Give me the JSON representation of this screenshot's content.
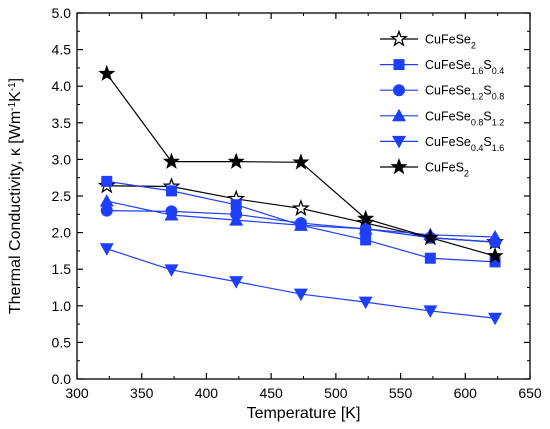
{
  "chart_data": {
    "type": "line",
    "xlabel": "Temperature [K]",
    "ylabel": {
      "prefix": "Thermal Conductivity, κ [Wm",
      "sup1": "-1",
      "mid": "K",
      "sup2": "-1",
      "suffix": "]"
    },
    "xlim": [
      300,
      650
    ],
    "ylim": [
      0.0,
      5.0
    ],
    "xticks": [
      "300",
      "350",
      "400",
      "450",
      "500",
      "550",
      "600",
      "650"
    ],
    "yticks": [
      "0.0",
      "0.5",
      "1.0",
      "1.5",
      "2.0",
      "2.5",
      "3.0",
      "3.5",
      "4.0",
      "4.5",
      "5.0"
    ],
    "grid": false,
    "legend_position": "top-right",
    "x": [
      323,
      373,
      423,
      473,
      523,
      573,
      623
    ],
    "series": [
      {
        "name": "CuFeSe2",
        "legend_parts": [
          {
            "t": "CuFeSe"
          },
          {
            "t": "2",
            "sub": true
          }
        ],
        "marker": "star-open",
        "color": "#000000",
        "values": [
          2.64,
          2.63,
          2.46,
          2.33,
          2.13,
          1.93,
          1.87
        ]
      },
      {
        "name": "CuFeSe1.6S0.4",
        "legend_parts": [
          {
            "t": "CuFeSe"
          },
          {
            "t": "1.6",
            "sub": true
          },
          {
            "t": "S"
          },
          {
            "t": "0.4",
            "sub": true
          }
        ],
        "marker": "square",
        "color": "#1f3fff",
        "values": [
          2.7,
          2.57,
          2.38,
          2.1,
          1.9,
          1.65,
          1.6
        ]
      },
      {
        "name": "CuFeSe1.2S0.8",
        "legend_parts": [
          {
            "t": "CuFeSe"
          },
          {
            "t": "1.2",
            "sub": true
          },
          {
            "t": "S"
          },
          {
            "t": "0.8",
            "sub": true
          }
        ],
        "marker": "circle",
        "color": "#1f3fff",
        "values": [
          2.3,
          2.29,
          2.25,
          2.13,
          2.05,
          1.93,
          1.87
        ]
      },
      {
        "name": "CuFeSe0.8S1.2",
        "legend_parts": [
          {
            "t": "CuFeSe"
          },
          {
            "t": "0.8",
            "sub": true
          },
          {
            "t": "S"
          },
          {
            "t": "1.2",
            "sub": true
          }
        ],
        "marker": "triangle-up",
        "color": "#1f3fff",
        "values": [
          2.43,
          2.24,
          2.17,
          2.1,
          2.05,
          1.97,
          1.94
        ]
      },
      {
        "name": "CuFeSe0.4S1.6",
        "legend_parts": [
          {
            "t": "CuFeSe"
          },
          {
            "t": "0.4",
            "sub": true
          },
          {
            "t": "S"
          },
          {
            "t": "1.6",
            "sub": true
          }
        ],
        "marker": "triangle-down",
        "color": "#1f3fff",
        "values": [
          1.78,
          1.49,
          1.33,
          1.16,
          1.05,
          0.93,
          0.83
        ]
      },
      {
        "name": "CuFeS2",
        "legend_parts": [
          {
            "t": "CuFeS"
          },
          {
            "t": "2",
            "sub": true
          }
        ],
        "marker": "star",
        "color": "#000000",
        "values": [
          4.17,
          2.97,
          2.97,
          2.96,
          2.19,
          1.93,
          1.68
        ]
      }
    ]
  }
}
